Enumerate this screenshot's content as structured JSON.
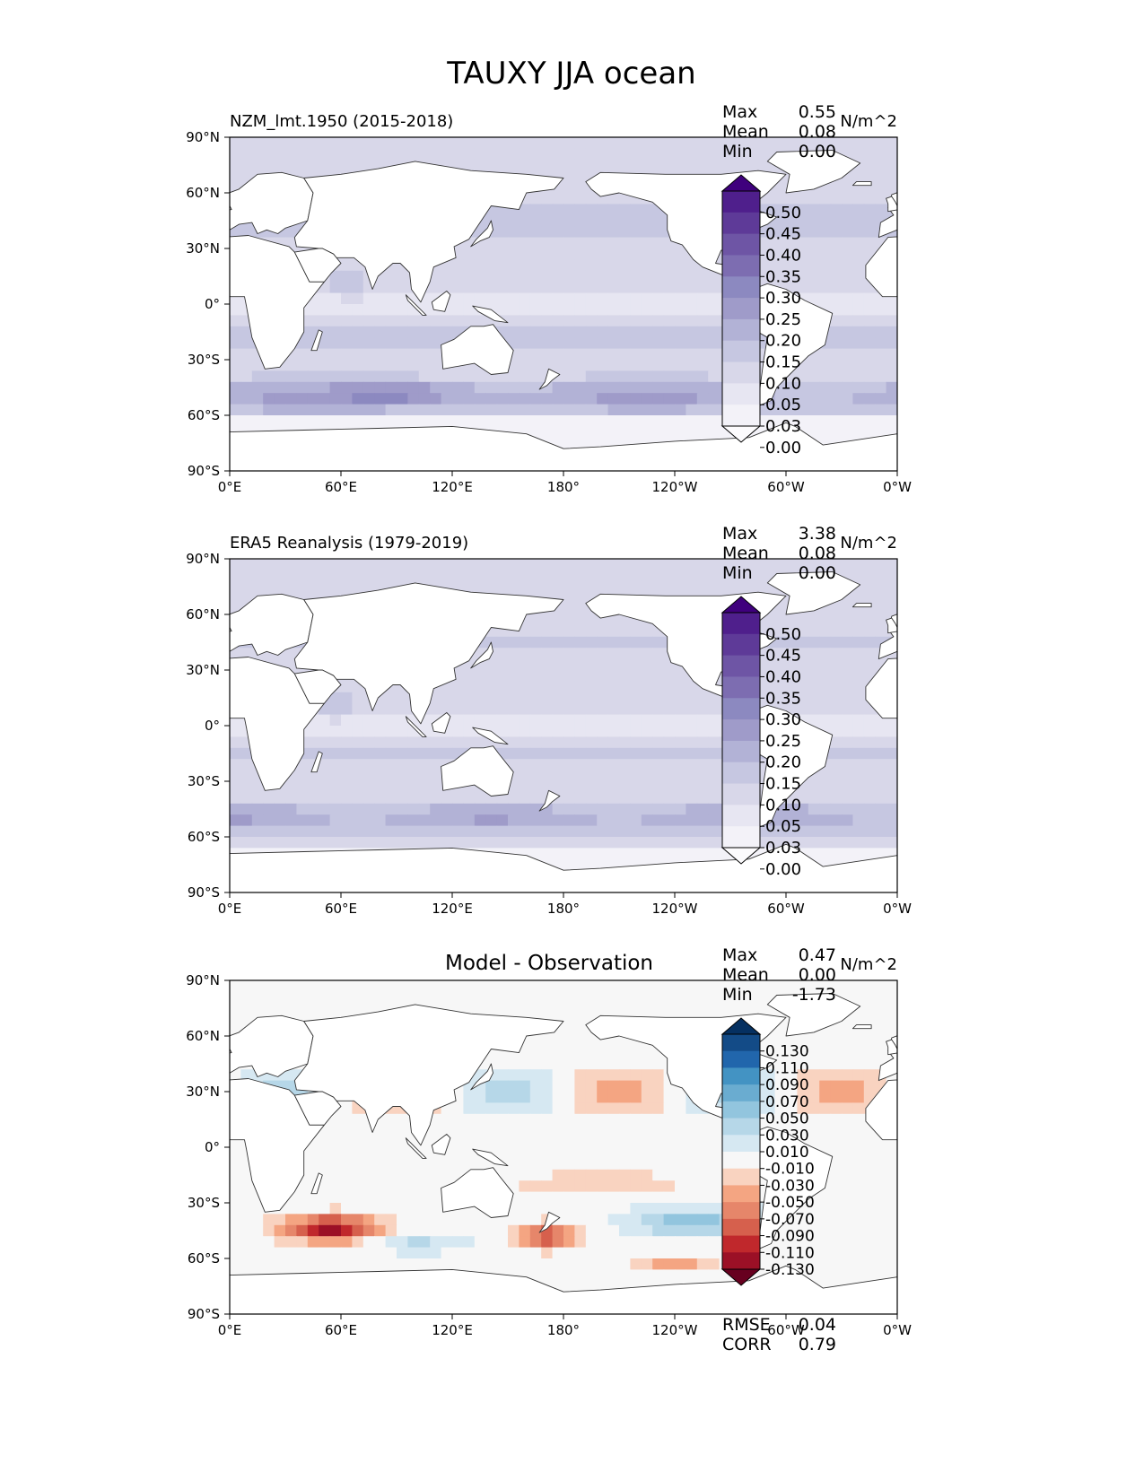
{
  "figure": {
    "title": "TAUXY JJA ocean"
  },
  "colors": {
    "land": "#ffffff",
    "coast": "#333333",
    "purples": [
      "#fcfbfd",
      "#f3f2f8",
      "#e7e6f2",
      "#d8d7e9",
      "#c6c7e1",
      "#b2b2d6",
      "#9f9bc9",
      "#8c89c0",
      "#7d6db1",
      "#6e55a5",
      "#5e3a98",
      "#4f1f8c",
      "#3f007d"
    ],
    "diverging": [
      "#67001f",
      "#9b1026",
      "#c0282c",
      "#d6604d",
      "#e6866a",
      "#f4a582",
      "#f9d3c0",
      "#f7f7f7",
      "#d6e8f2",
      "#b6d7e8",
      "#92c5de",
      "#6aacd0",
      "#4393c3",
      "#2166ac",
      "#134b87",
      "#053061"
    ]
  },
  "chart_data": [
    {
      "type": "heatmap",
      "title": "NZM_lmt.1950 (2015-2018)",
      "units": "N/m^2",
      "xticks": [
        "0°E",
        "60°E",
        "120°E",
        "180°",
        "120°W",
        "60°W",
        "0°W"
      ],
      "yticks": [
        "90°N",
        "60°N",
        "30°N",
        "0°",
        "30°S",
        "60°S",
        "90°S"
      ],
      "xlim": [
        0,
        360
      ],
      "ylim": [
        -90,
        90
      ],
      "stats": {
        "labels": [
          "Max",
          "Mean",
          "Min"
        ],
        "values": [
          "0.55",
          "0.08",
          "0.00"
        ]
      },
      "colorbar": {
        "levels": [
          "0.50",
          "0.45",
          "0.40",
          "0.35",
          "0.30",
          "0.25",
          "0.20",
          "0.15",
          "0.10",
          "0.05",
          "0.03",
          "0.00"
        ],
        "extend": "both"
      }
    },
    {
      "type": "heatmap",
      "title": "ERA5 Reanalysis (1979-2019)",
      "units": "N/m^2",
      "xticks": [
        "0°E",
        "60°E",
        "120°E",
        "180°",
        "120°W",
        "60°W",
        "0°W"
      ],
      "yticks": [
        "90°N",
        "60°N",
        "30°N",
        "0°",
        "30°S",
        "60°S",
        "90°S"
      ],
      "xlim": [
        0,
        360
      ],
      "ylim": [
        -90,
        90
      ],
      "stats": {
        "labels": [
          "Max",
          "Mean",
          "Min"
        ],
        "values": [
          "3.38",
          "0.08",
          "0.00"
        ]
      },
      "colorbar": {
        "levels": [
          "0.50",
          "0.45",
          "0.40",
          "0.35",
          "0.30",
          "0.25",
          "0.20",
          "0.15",
          "0.10",
          "0.05",
          "0.03",
          "0.00"
        ],
        "extend": "both"
      }
    },
    {
      "type": "heatmap",
      "title": "Model - Observation",
      "units": "N/m^2",
      "xticks": [
        "0°E",
        "60°E",
        "120°E",
        "180°",
        "120°W",
        "60°W",
        "0°W"
      ],
      "yticks": [
        "90°N",
        "60°N",
        "30°N",
        "0°",
        "30°S",
        "60°S",
        "90°S"
      ],
      "xlim": [
        0,
        360
      ],
      "ylim": [
        -90,
        90
      ],
      "stats": {
        "labels": [
          "Max",
          "Mean",
          "Min"
        ],
        "values": [
          "0.47",
          "0.00",
          "-1.73"
        ]
      },
      "colorbar": {
        "levels": [
          "0.130",
          "0.110",
          "0.090",
          "0.070",
          "0.050",
          "0.030",
          "0.010",
          "-0.010",
          "-0.030",
          "-0.050",
          "-0.070",
          "-0.090",
          "-0.110",
          "-0.130"
        ],
        "extend": "both"
      },
      "metrics": {
        "labels": [
          "RMSE",
          "CORR"
        ],
        "values": [
          "0.04",
          "0.79"
        ]
      }
    }
  ]
}
